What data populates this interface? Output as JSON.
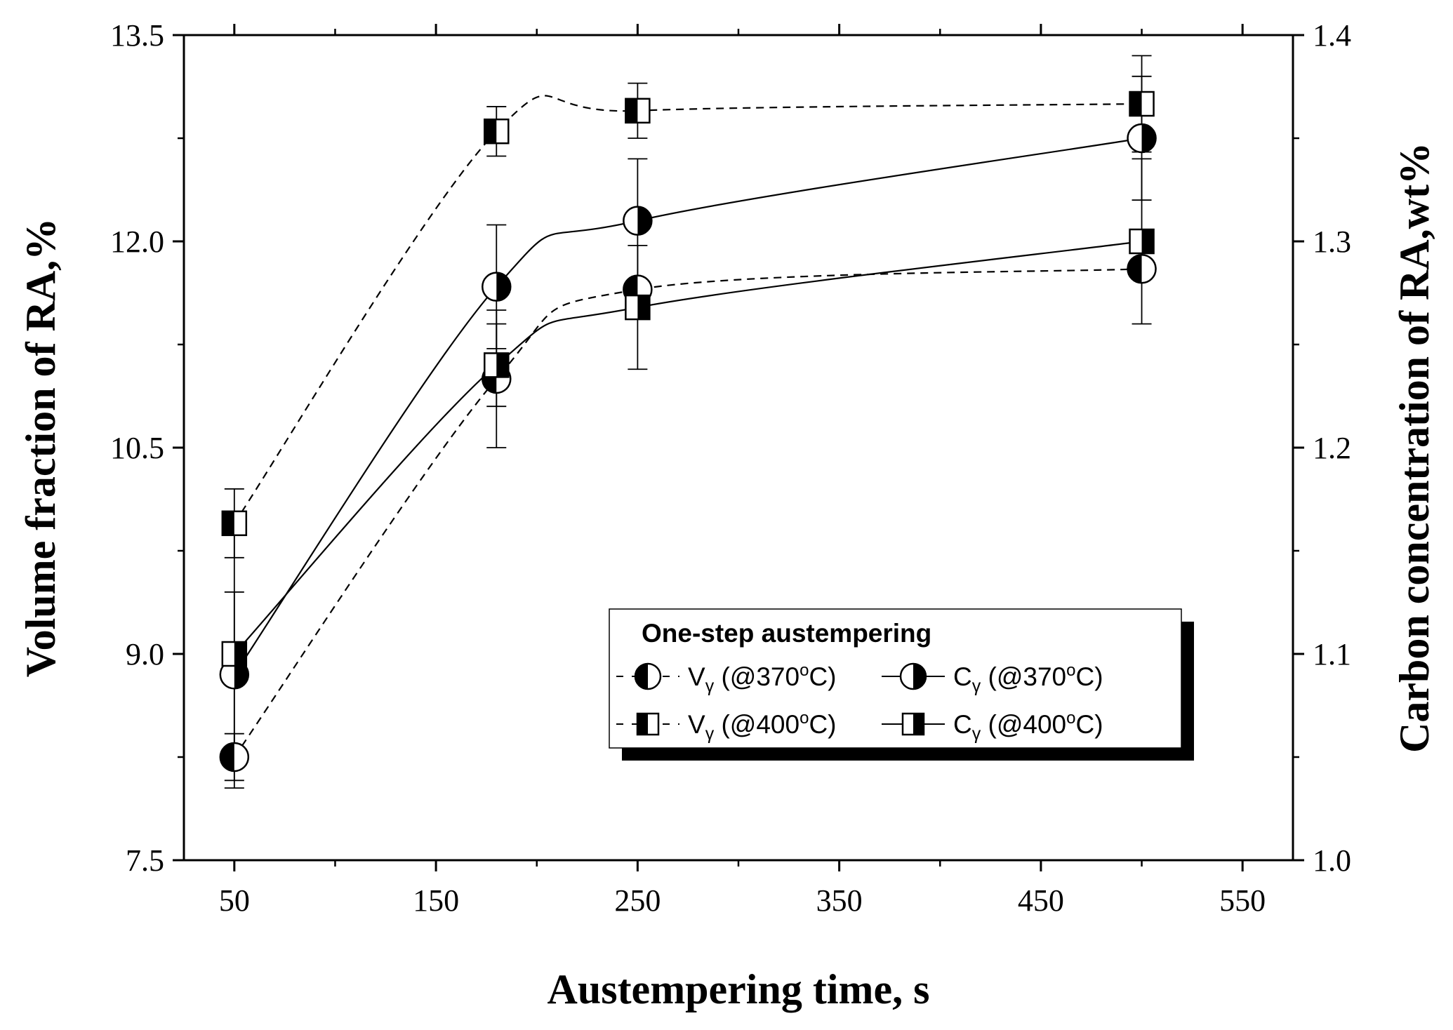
{
  "chart_data": {
    "type": "line",
    "title": "",
    "xlabel": "Austempering time, s",
    "ylabel_left": "Volume fraction of RA,%",
    "ylabel_right": "Carbon concentration of RA,wt%",
    "xlim": [
      25,
      575
    ],
    "ylim_left": [
      7.5,
      13.5
    ],
    "ylim_right": [
      1.0,
      1.4
    ],
    "xticks": [
      50,
      150,
      250,
      350,
      450,
      550
    ],
    "xtick_labels": [
      "50",
      "150",
      "250",
      "350",
      "450",
      "550"
    ],
    "yticks_left": [
      7.5,
      9.0,
      10.5,
      12.0,
      13.5
    ],
    "ytick_labels_left": [
      "7.5",
      "9.0",
      "10.5",
      "12.0",
      "13.5"
    ],
    "yticks_right": [
      1.0,
      1.1,
      1.2,
      1.3,
      1.4
    ],
    "ytick_labels_right": [
      "1.0",
      "1.1",
      "1.2",
      "1.3",
      "1.4"
    ],
    "grid": false,
    "legend": {
      "title": "One-step austempering",
      "position": "lower-right",
      "entries": [
        {
          "symbol": "V",
          "sub": "γ",
          "cond": " (@370",
          "deg": "o",
          "unit": "C)"
        },
        {
          "symbol": "C",
          "sub": "γ",
          "cond": " (@370",
          "deg": "o",
          "unit": "C)"
        },
        {
          "symbol": "V",
          "sub": "γ",
          "cond": " (@400",
          "deg": "o",
          "unit": "C)"
        },
        {
          "symbol": "C",
          "sub": "γ",
          "cond": " (@400",
          "deg": "o",
          "unit": "C)"
        }
      ]
    },
    "series": [
      {
        "name": "Vγ (@370°C)",
        "axis": "left",
        "marker": "circle-left-filled",
        "line": "dashed",
        "x": [
          50,
          180,
          250,
          500
        ],
        "y": [
          8.25,
          11.0,
          11.65,
          11.8
        ],
        "err": [
          0.17,
          0.5,
          0.0,
          0.0
        ]
      },
      {
        "name": "Cγ (@370°C)",
        "axis": "right",
        "marker": "circle-right-filled",
        "line": "solid",
        "x": [
          50,
          180,
          250,
          500
        ],
        "y": [
          1.09,
          1.278,
          1.31,
          1.35
        ],
        "err": [
          0.04,
          0.03,
          0.03,
          0.03
        ]
      },
      {
        "name": "Vγ (@400°C)",
        "axis": "left",
        "marker": "square-left-filled",
        "line": "dashed",
        "x": [
          50,
          180,
          250,
          500
        ],
        "y": [
          9.95,
          12.8,
          12.95,
          13.0
        ],
        "err": [
          0.25,
          0.18,
          0.2,
          0.35
        ]
      },
      {
        "name": "Cγ (@400°C)",
        "axis": "right",
        "marker": "square-right-filled",
        "line": "solid",
        "x": [
          50,
          180,
          250,
          500
        ],
        "y": [
          1.1,
          1.24,
          1.268,
          1.3
        ],
        "err": [
          0.065,
          0.02,
          0.03,
          0.04
        ]
      }
    ]
  }
}
